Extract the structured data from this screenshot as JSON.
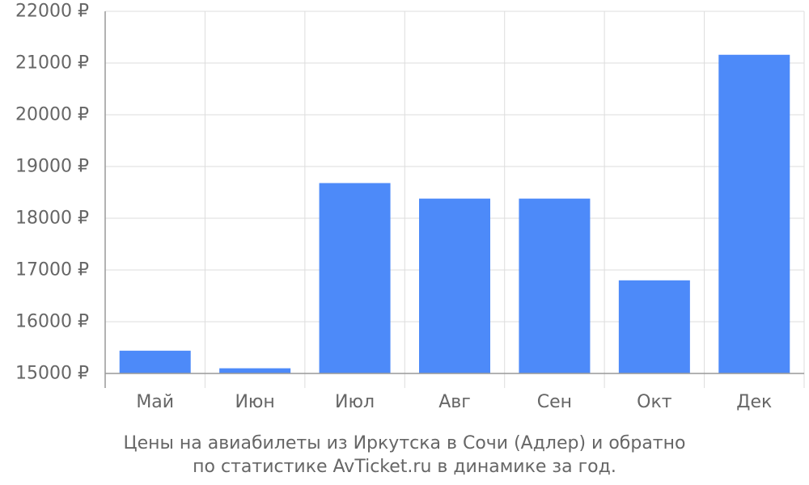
{
  "chart_data": {
    "type": "bar",
    "title": "Цены на авиабилеты из Иркутска в Сочи (Адлер) и обратно",
    "subtitle": "по статистике AvTicket.ru в динамике за год.",
    "categories": [
      "Май",
      "Июн",
      "Июл",
      "Авг",
      "Сен",
      "Окт",
      "Дек"
    ],
    "values": [
      15440,
      15100,
      18680,
      18380,
      18380,
      16800,
      21160
    ],
    "ylim": [
      15000,
      22000
    ],
    "yticks": [
      15000,
      16000,
      17000,
      18000,
      19000,
      20000,
      21000,
      22000
    ],
    "ytick_labels": [
      "15000 ₽",
      "16000 ₽",
      "17000 ₽",
      "18000 ₽",
      "19000 ₽",
      "20000 ₽",
      "21000 ₽",
      "22000 ₽"
    ],
    "grid": true,
    "colors": {
      "bar": "#4d8af9",
      "grid": "#dddddd",
      "axis": "#999999",
      "text": "#666666"
    }
  }
}
